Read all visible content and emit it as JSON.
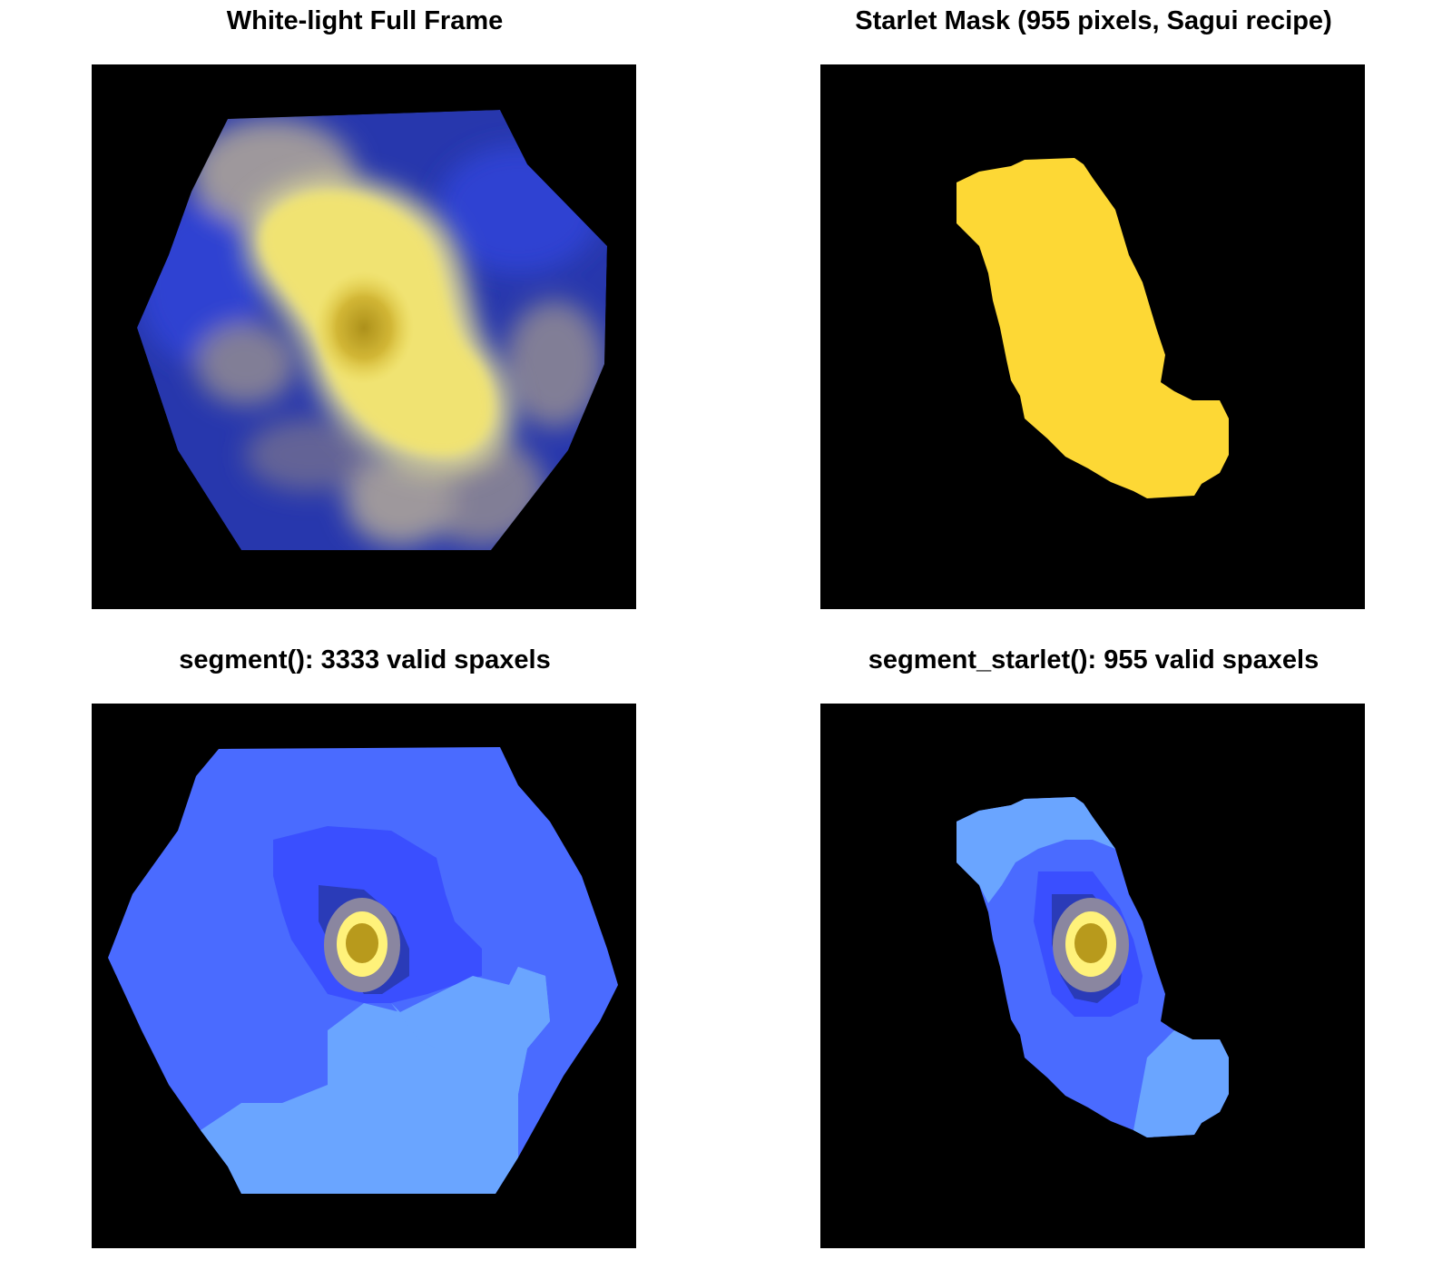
{
  "panels": {
    "white_light": {
      "title": "White-light Full Frame"
    },
    "starlet_mask": {
      "title": "Starlet Mask (955 pixels, Sagui recipe)"
    },
    "segment": {
      "title": "segment(): 3333 valid spaxels"
    },
    "segment_starlet": {
      "title": "segment_starlet(): 955 valid spaxels"
    }
  },
  "colors": {
    "background": "#000000",
    "yellow_bright": "#fff27a",
    "yellow_mask": "#fdd835",
    "olive_core": "#b89a1c",
    "gray_lavender": "#8a86a0",
    "blue_dark": "#2a3bb8",
    "blue_mid": "#3a4fff",
    "blue_medium": "#4a6bff",
    "blue_light": "#6aa5ff"
  }
}
